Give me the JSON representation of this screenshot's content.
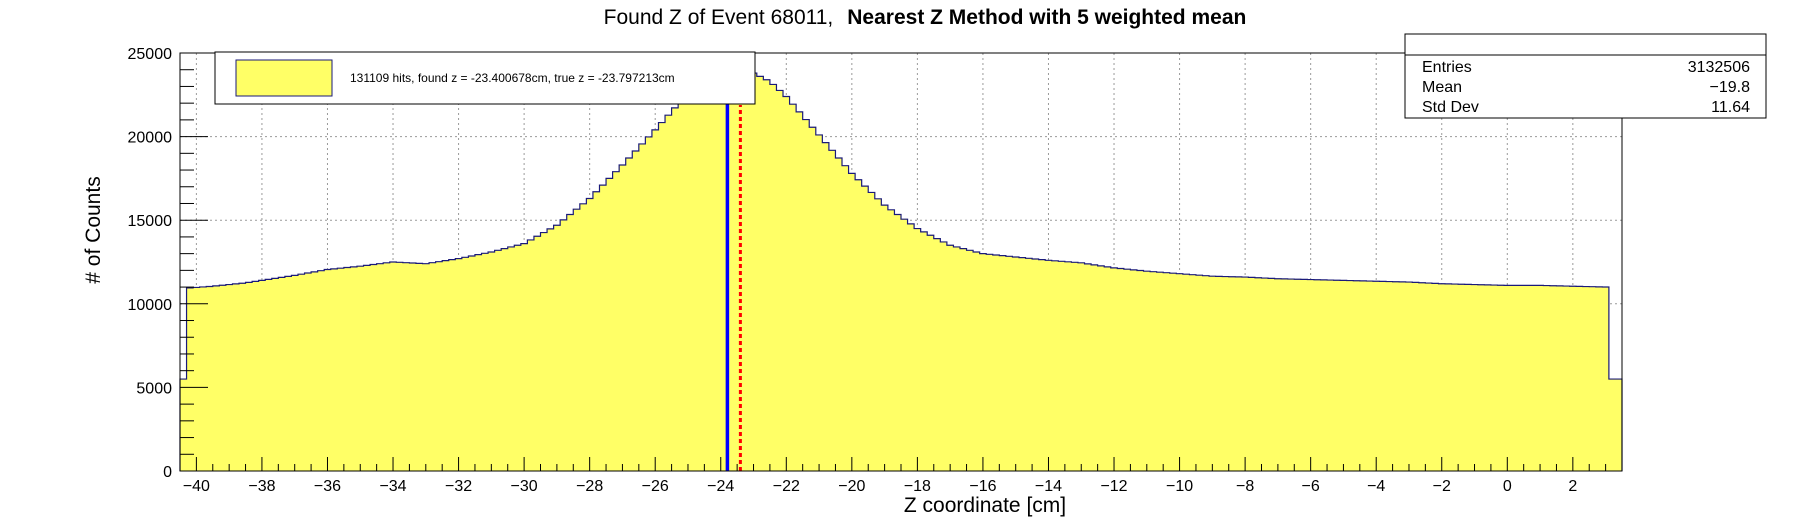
{
  "chart_data": {
    "type": "histogram",
    "title_prefix": "Found Z of Event 68011,",
    "title_bold": "Nearest Z Method with 5 weighted mean",
    "xlabel": "Z coordinate [cm]",
    "ylabel": "# of Counts",
    "xlim": [
      -40.5,
      3.5
    ],
    "ylim": [
      0,
      25000
    ],
    "x_ticks": [
      -40,
      -38,
      -36,
      -34,
      -32,
      -30,
      -28,
      -26,
      -24,
      -22,
      -20,
      -18,
      -16,
      -14,
      -12,
      -10,
      -8,
      -6,
      -4,
      -2,
      0,
      2
    ],
    "y_ticks": [
      0,
      5000,
      10000,
      15000,
      20000,
      25000
    ],
    "grid": true,
    "fill_color": "#ffff66",
    "line_color": "#1a1a7a",
    "profile": [
      [
        -40.5,
        5500
      ],
      [
        -40.3,
        5500
      ],
      [
        -40.2,
        10950
      ],
      [
        -39.5,
        11050
      ],
      [
        -38.5,
        11250
      ],
      [
        -37,
        11700
      ],
      [
        -36,
        12050
      ],
      [
        -35,
        12250
      ],
      [
        -34,
        12500
      ],
      [
        -33,
        12400
      ],
      [
        -32,
        12700
      ],
      [
        -31,
        13100
      ],
      [
        -30,
        13600
      ],
      [
        -29,
        14700
      ],
      [
        -28,
        16300
      ],
      [
        -27,
        18300
      ],
      [
        -26,
        20400
      ],
      [
        -25,
        22600
      ],
      [
        -24.5,
        23500
      ],
      [
        -24,
        23750
      ],
      [
        -23.5,
        23950
      ],
      [
        -23,
        23800
      ],
      [
        -22.5,
        23300
      ],
      [
        -22,
        22400
      ],
      [
        -21,
        20100
      ],
      [
        -20,
        17800
      ],
      [
        -19,
        15900
      ],
      [
        -18,
        14500
      ],
      [
        -17,
        13500
      ],
      [
        -16,
        13000
      ],
      [
        -15,
        12800
      ],
      [
        -14,
        12600
      ],
      [
        -13,
        12450
      ],
      [
        -12,
        12150
      ],
      [
        -11,
        11950
      ],
      [
        -10,
        11800
      ],
      [
        -9,
        11650
      ],
      [
        -8,
        11600
      ],
      [
        -7,
        11500
      ],
      [
        -6,
        11450
      ],
      [
        -5,
        11400
      ],
      [
        -4,
        11350
      ],
      [
        -3,
        11300
      ],
      [
        -2,
        11200
      ],
      [
        -1,
        11150
      ],
      [
        0,
        11100
      ],
      [
        1,
        11100
      ],
      [
        2,
        11050
      ],
      [
        3.1,
        11000
      ],
      [
        3.2,
        5500
      ],
      [
        3.5,
        5500
      ]
    ],
    "found_z": -23.400678,
    "true_z": -23.797213,
    "found_line_color": "#ff0000",
    "true_line_color": "#0000ff",
    "legend": {
      "label": "131109 hits, found z = -23.400678cm, true z = -23.797213cm",
      "swatch_color": "#ffff66"
    },
    "stats": {
      "rows": [
        {
          "name": "Entries",
          "value": "3132506"
        },
        {
          "name": "Mean",
          "value": "−19.8"
        },
        {
          "name": "Std Dev",
          "value": "11.64"
        }
      ]
    }
  }
}
